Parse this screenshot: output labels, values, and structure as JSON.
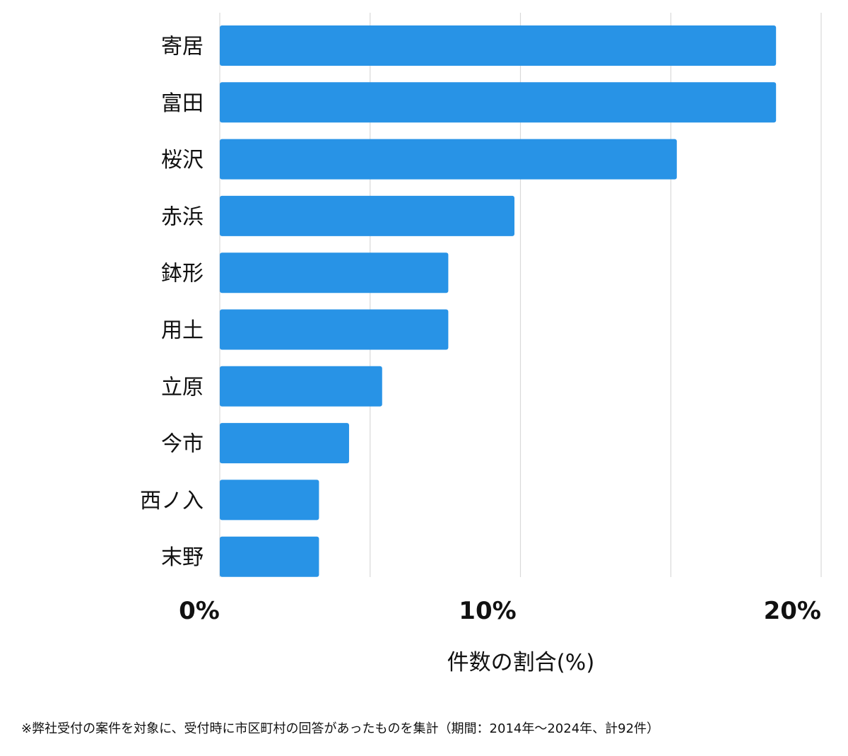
{
  "chart_data": {
    "type": "bar",
    "orientation": "horizontal",
    "categories": [
      "寄居",
      "富田",
      "桜沢",
      "赤浜",
      "鉢形",
      "用土",
      "立原",
      "今市",
      "西ノ入",
      "末野"
    ],
    "values": [
      18.5,
      18.5,
      15.2,
      9.8,
      7.6,
      7.6,
      5.4,
      4.3,
      3.3,
      3.3
    ],
    "xlim": [
      0,
      20
    ],
    "x_ticks": [
      {
        "value": 0,
        "label": "0%"
      },
      {
        "value": 10,
        "label": "10%"
      },
      {
        "value": 20,
        "label": "20%"
      }
    ],
    "x_gridlines": [
      0,
      5,
      10,
      15,
      20
    ],
    "xlabel": "件数の割合(%)",
    "ylabel": "",
    "grid": true,
    "bar_color": "#2893e6",
    "grid_color": "#d9d9d9"
  },
  "footnote": "※弊社受付の案件を対象に、受付時に市区町村の回答があったものを集計（期間：2014年～2024年、計92件）"
}
